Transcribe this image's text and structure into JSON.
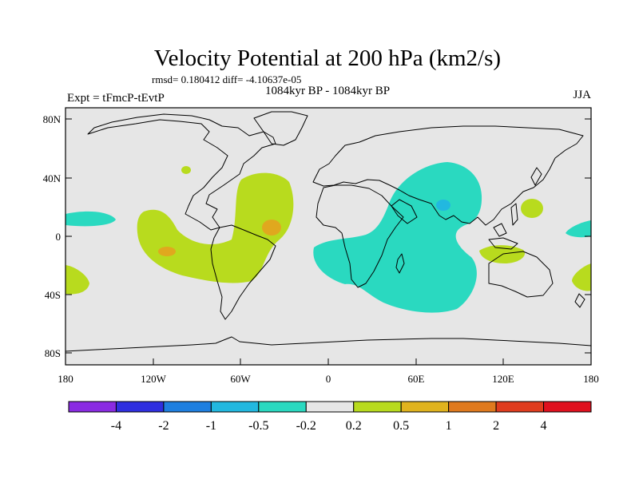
{
  "title": "Velocity Potential at 200 hPa (km2/s)",
  "stats_line": "rmsd= 0.180412 diff= -4.10637e-05",
  "left_label": "Expt = tFmcP-tEvtP",
  "center_label": "1084kyr BP - 1084kyr BP",
  "right_label": "JJA",
  "y_ticks": [
    "80N",
    "40N",
    "0",
    "40S",
    "80S"
  ],
  "x_ticks": [
    "180",
    "120W",
    "60W",
    "0",
    "60E",
    "120E",
    "180"
  ],
  "colorbar": {
    "colors": [
      "#8a2be2",
      "#2f2fe0",
      "#1e7fe0",
      "#22b8e0",
      "#2ad9c0",
      "#e6e6e6",
      "#b8db1e",
      "#e0b31e",
      "#e07a1e",
      "#e03c1e",
      "#e0101e"
    ],
    "labels": [
      "-4",
      "-2",
      "-1",
      "-0.5",
      "-0.2",
      "0.2",
      "0.5",
      "1",
      "2",
      "4"
    ]
  },
  "colors": {
    "ocean_bg": "#e6e6e6",
    "positive_light": "#b8db1e",
    "positive_mid": "#e0a81e",
    "negative_light": "#2ad9c0",
    "negative_mid": "#22b8e0"
  }
}
